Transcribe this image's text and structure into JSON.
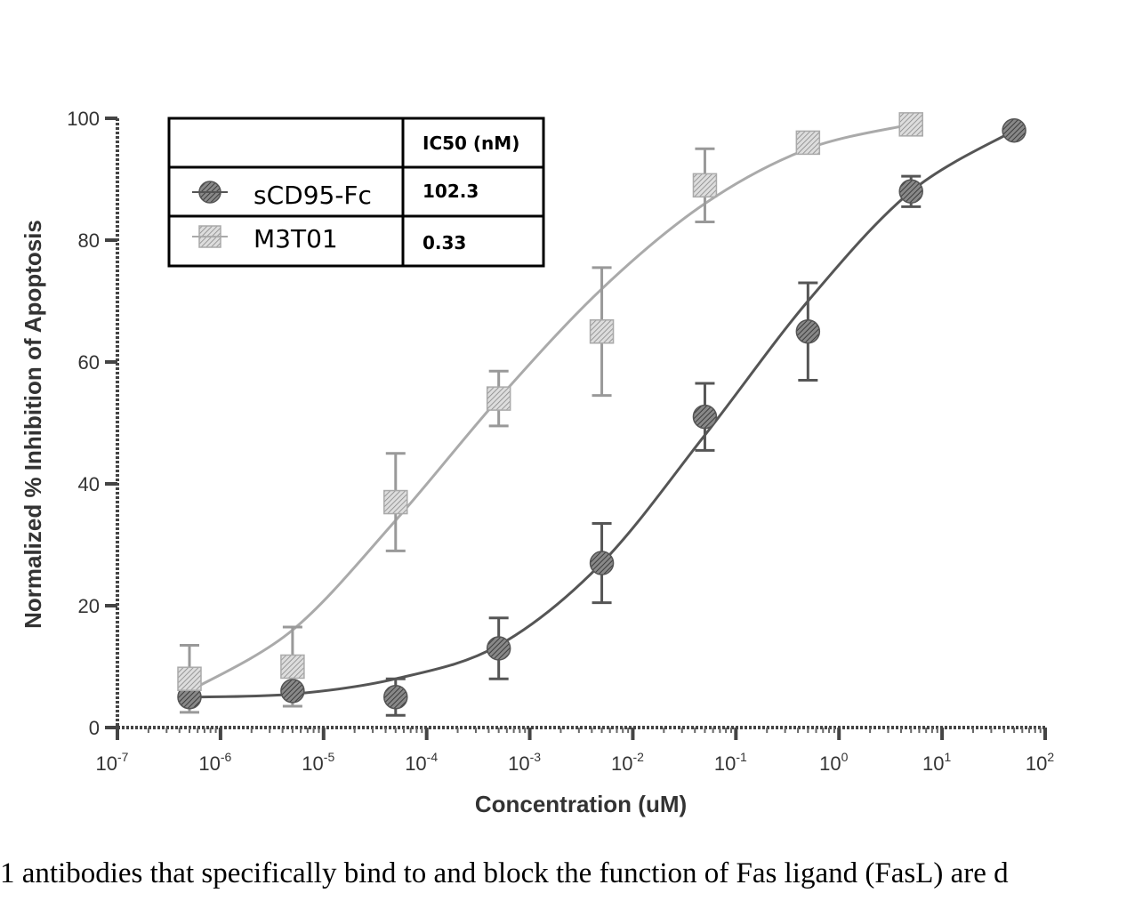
{
  "chart_data": {
    "type": "scatter",
    "xlabel": "Concentration (uM)",
    "ylabel": "Normalized % Inhibition of Apoptosis",
    "x_scale": "log",
    "xlim": [
      1e-07,
      100
    ],
    "ylim": [
      0,
      100
    ],
    "x_ticks": [
      {
        "base": "10",
        "exp": "-7"
      },
      {
        "base": "10",
        "exp": "-6"
      },
      {
        "base": "10",
        "exp": "-5"
      },
      {
        "base": "10",
        "exp": "-4"
      },
      {
        "base": "10",
        "exp": "-3"
      },
      {
        "base": "10",
        "exp": "-2"
      },
      {
        "base": "10",
        "exp": "-1"
      },
      {
        "base": "10",
        "exp": "0"
      },
      {
        "base": "10",
        "exp": "1"
      },
      {
        "base": "10",
        "exp": "2"
      }
    ],
    "y_ticks": [
      "0",
      "20",
      "40",
      "60",
      "80",
      "100"
    ],
    "legend": {
      "header": "IC50 (nM)",
      "placement": "top-left",
      "rows": [
        {
          "name": "sCD95-Fc",
          "ic50": "102.3",
          "marker": "circle"
        },
        {
          "name": "M3T01",
          "ic50": "0.33",
          "marker": "square"
        }
      ]
    },
    "series": [
      {
        "name": "sCD95-Fc",
        "marker": "circle",
        "x": [
          5e-07,
          5e-06,
          5e-05,
          0.0005,
          0.005,
          0.05,
          0.5,
          5,
          50
        ],
        "y": [
          5,
          6,
          5,
          13,
          27,
          51,
          65,
          88,
          98
        ],
        "err": [
          0,
          0,
          3,
          5,
          6.5,
          5.5,
          8,
          2.5,
          0
        ],
        "fit_points": [
          [
            5e-07,
            5
          ],
          [
            5e-06,
            5.5
          ],
          [
            5e-05,
            8
          ],
          [
            0.0005,
            13.5
          ],
          [
            0.005,
            27
          ],
          [
            0.05,
            48
          ],
          [
            0.5,
            70
          ],
          [
            5,
            88
          ],
          [
            50,
            98
          ]
        ]
      },
      {
        "name": "M3T01",
        "marker": "square",
        "x": [
          5e-07,
          5e-06,
          5e-05,
          0.0005,
          0.005,
          0.05,
          0.5,
          5
        ],
        "y": [
          8,
          10,
          37,
          54,
          65,
          89,
          96,
          99
        ],
        "err": [
          5.5,
          6.5,
          8,
          4.5,
          10.5,
          6,
          0,
          0
        ],
        "fit_points": [
          [
            5e-07,
            6
          ],
          [
            5e-06,
            16
          ],
          [
            5e-05,
            34
          ],
          [
            0.0005,
            54
          ],
          [
            0.005,
            72
          ],
          [
            0.05,
            86
          ],
          [
            0.5,
            95
          ],
          [
            5,
            99
          ]
        ]
      }
    ]
  },
  "caption": "1 antibodies that specifically bind to and block the function of Fas ligand (FasL) are d"
}
